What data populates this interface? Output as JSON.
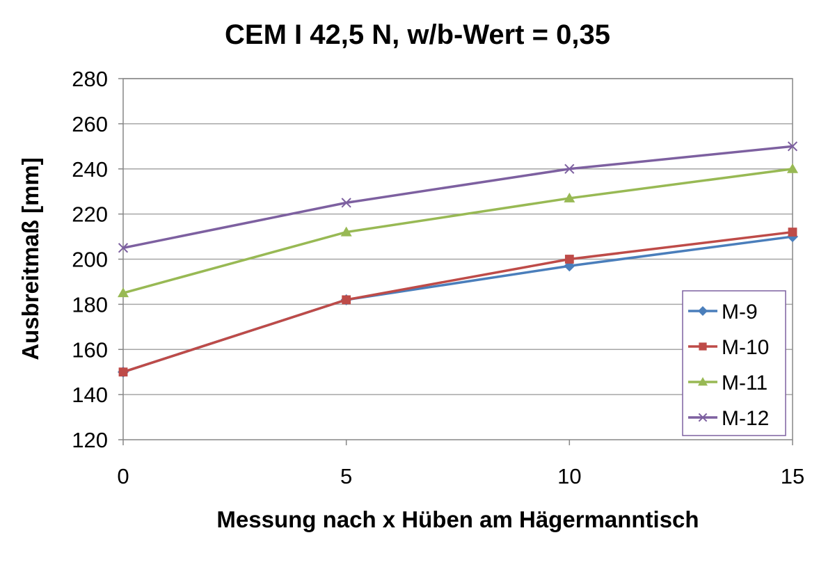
{
  "chart_data": {
    "type": "line",
    "title": "CEM I 42,5 N, w/b-Wert = 0,35",
    "xlabel": "Messung nach x Hüben am Hägermanntisch",
    "ylabel": "Ausbreitmaß [mm]",
    "x": [
      0,
      5,
      10,
      15
    ],
    "xticks": [
      0,
      5,
      10,
      15
    ],
    "xlim": [
      0,
      15
    ],
    "ylim": [
      120,
      280
    ],
    "yticks": [
      120,
      140,
      160,
      180,
      200,
      220,
      240,
      260,
      280
    ],
    "grid": true,
    "legend_position": "bottom-right",
    "series": [
      {
        "name": "M-9",
        "values": [
          150,
          182,
          197,
          210
        ],
        "color": "#4a7ebb",
        "marker": "diamond"
      },
      {
        "name": "M-10",
        "values": [
          150,
          182,
          200,
          212
        ],
        "color": "#be4b48",
        "marker": "square"
      },
      {
        "name": "M-11",
        "values": [
          185,
          212,
          227,
          240
        ],
        "color": "#98b954",
        "marker": "triangle"
      },
      {
        "name": "M-12",
        "values": [
          205,
          225,
          240,
          250
        ],
        "color": "#7d60a0",
        "marker": "x"
      }
    ],
    "colors": {
      "grid": "#a6a6a6",
      "axis": "#868686",
      "legend_border": "#7d60a0"
    }
  }
}
